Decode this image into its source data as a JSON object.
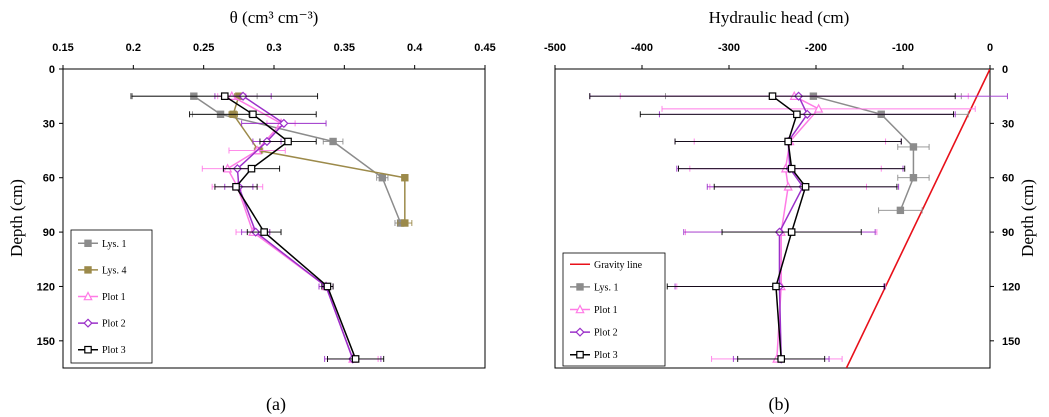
{
  "chart_data": [
    {
      "type": "line",
      "panel_label": "(a)",
      "xlabel": "θ (cm³ cm⁻³)",
      "ylabel": "Depth (cm)",
      "xlim": [
        0.15,
        0.45
      ],
      "ylim": [
        0,
        165
      ],
      "x_ticks": [
        "0.15",
        "0.2",
        "0.25",
        "0.3",
        "0.35",
        "0.4",
        "0.45"
      ],
      "y_ticks": [
        "0",
        "30",
        "60",
        "90",
        "120",
        "150"
      ],
      "y_inverted": true,
      "x_axis_position": "top",
      "legend_position": "bottom-left",
      "series": [
        {
          "name": "Lys. 1",
          "color": "#8c8c8c",
          "marker": "square-filled",
          "points": [
            [
              0.243,
              15
            ],
            [
              0.262,
              25
            ],
            [
              0.342,
              40
            ],
            [
              0.377,
              60
            ],
            [
              0.39,
              85
            ]
          ],
          "xerr": [
            0.045,
            0.02,
            0.007,
            0.004,
            0.004
          ]
        },
        {
          "name": "Lys. 4",
          "color": "#9c8a4a",
          "marker": "square-filled",
          "points": [
            [
              0.275,
              15
            ],
            [
              0.271,
              25
            ],
            [
              0.289,
              45
            ],
            [
              0.393,
              60
            ],
            [
              0.393,
              85
            ]
          ],
          "xerr": [
            0.003,
            0.003,
            0.003,
            0.002,
            0.005
          ]
        },
        {
          "name": "Plot 1",
          "color": "#ff7be6",
          "marker": "triangle",
          "points": [
            [
              0.27,
              15
            ],
            [
              0.305,
              30
            ],
            [
              0.288,
              45
            ],
            [
              0.267,
              55
            ],
            [
              0.274,
              65
            ],
            [
              0.285,
              90
            ],
            [
              0.337,
              120
            ],
            [
              0.356,
              160
            ]
          ],
          "xerr": [
            0.01,
            0.01,
            0.02,
            0.018,
            0.018,
            0.012,
            0.005,
            0.018
          ]
        },
        {
          "name": "Plot 2",
          "color": "#9b30c9",
          "marker": "diamond",
          "points": [
            [
              0.278,
              15
            ],
            [
              0.307,
              30
            ],
            [
              0.295,
              40
            ],
            [
              0.274,
              55
            ],
            [
              0.275,
              65
            ],
            [
              0.287,
              90
            ],
            [
              0.337,
              120
            ],
            [
              0.356,
              160
            ]
          ],
          "xerr": [
            0.02,
            0.03,
            0.01,
            0.01,
            0.01,
            0.01,
            0.005,
            0.02
          ]
        },
        {
          "name": "Plot 3",
          "color": "#000000",
          "marker": "square-open",
          "points": [
            [
              0.265,
              15
            ],
            [
              0.285,
              25
            ],
            [
              0.31,
              40
            ],
            [
              0.284,
              55
            ],
            [
              0.273,
              65
            ],
            [
              0.293,
              90
            ],
            [
              0.338,
              120
            ],
            [
              0.358,
              160
            ]
          ],
          "xerr": [
            0.066,
            0.045,
            0.02,
            0.02,
            0.015,
            0.012,
            0.004,
            0.02
          ]
        }
      ]
    },
    {
      "type": "line",
      "panel_label": "(b)",
      "xlabel": "Hydraulic head (cm)",
      "ylabel": "Depth (cm)",
      "xlim": [
        -500,
        0
      ],
      "ylim": [
        0,
        165
      ],
      "x_ticks": [
        "-500",
        "-400",
        "-300",
        "-200",
        "-100",
        "0"
      ],
      "y_ticks": [
        "0",
        "30",
        "60",
        "90",
        "120",
        "150"
      ],
      "y_inverted": true,
      "x_axis_position": "top",
      "y_axis_position": "right",
      "legend_position": "bottom-left",
      "series": [
        {
          "name": "Gravity line",
          "color": "#e8101a",
          "marker": "none",
          "points": [
            [
              0,
              0
            ],
            [
              -165,
              165
            ]
          ]
        },
        {
          "name": "Lys. 1",
          "color": "#8c8c8c",
          "marker": "square-filled",
          "points": [
            [
              -203,
              15
            ],
            [
              -125,
              25
            ],
            [
              -88,
              43
            ],
            [
              -88,
              60
            ],
            [
              -103,
              78
            ]
          ],
          "xerr": [
            170,
            100,
            18,
            18,
            25
          ]
        },
        {
          "name": "Plot 1",
          "color": "#ff7be6",
          "marker": "triangle",
          "points": [
            [
              -225,
              15
            ],
            [
              -197,
              22
            ],
            [
              -230,
              40
            ],
            [
              -235,
              55
            ],
            [
              -232,
              65
            ],
            [
              -240,
              90
            ],
            [
              -240,
              120
            ],
            [
              -245,
              160
            ]
          ],
          "xerr": [
            200,
            180,
            110,
            110,
            90,
            110,
            120,
            75
          ]
        },
        {
          "name": "Plot 2",
          "color": "#9b30c9",
          "marker": "diamond",
          "points": [
            [
              -220,
              15
            ],
            [
              -210,
              25
            ],
            [
              -232,
              40
            ],
            [
              -230,
              55
            ],
            [
              -215,
              65
            ],
            [
              -242,
              90
            ],
            [
              -242,
              120
            ],
            [
              -240,
              160
            ]
          ],
          "xerr": [
            240,
            170,
            130,
            130,
            110,
            110,
            120,
            55
          ]
        },
        {
          "name": "Plot 3",
          "color": "#000000",
          "marker": "square-open",
          "points": [
            [
              -250,
              15
            ],
            [
              -222,
              25
            ],
            [
              -232,
              40
            ],
            [
              -228,
              55
            ],
            [
              -212,
              65
            ],
            [
              -228,
              90
            ],
            [
              -246,
              120
            ],
            [
              -240,
              160
            ]
          ],
          "xerr": [
            210,
            180,
            130,
            130,
            105,
            80,
            125,
            50
          ]
        }
      ]
    }
  ]
}
